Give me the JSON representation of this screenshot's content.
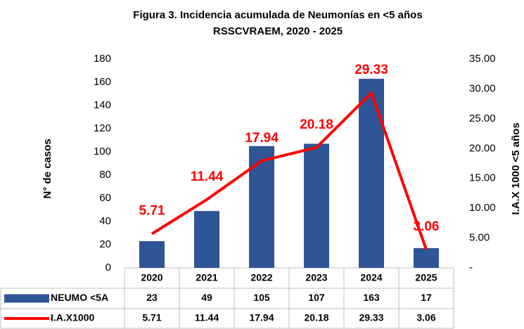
{
  "chart_data": {
    "type": "bar_line",
    "title": "Figura 3. Incidencia acumulada de Neumonías en <5 años",
    "subtitle": "RSSCVRAEM, 2020 - 2025",
    "ylabel": "N° de casos",
    "y2label": "I.A.X 1000 <5 años",
    "categories": [
      "2020",
      "2021",
      "2022",
      "2023",
      "2024",
      "2025"
    ],
    "series": [
      {
        "name": "NEUMO <5A",
        "type": "bar",
        "color": "#2f5597",
        "values": [
          23,
          49,
          105,
          107,
          163,
          17
        ]
      },
      {
        "name": "I.A.X1000",
        "type": "line",
        "color": "#ff0000",
        "axis": "y2",
        "values": [
          5.71,
          11.44,
          17.94,
          20.18,
          29.33,
          3.06
        ]
      }
    ],
    "ylim": [
      0,
      180
    ],
    "yticks": [
      0,
      20,
      40,
      60,
      80,
      100,
      120,
      140,
      160,
      180
    ],
    "y2lim": [
      0,
      35
    ],
    "y2ticks": [
      {
        "value": 0,
        "label": "-"
      },
      {
        "value": 5,
        "label": "5.00"
      },
      {
        "value": 10,
        "label": "10.00"
      },
      {
        "value": 15,
        "label": "15.00"
      },
      {
        "value": 20,
        "label": "20.00"
      },
      {
        "value": 25,
        "label": "25.00"
      },
      {
        "value": 30,
        "label": "30.00"
      },
      {
        "value": 35,
        "label": "35.00"
      }
    ],
    "data_table": true
  }
}
